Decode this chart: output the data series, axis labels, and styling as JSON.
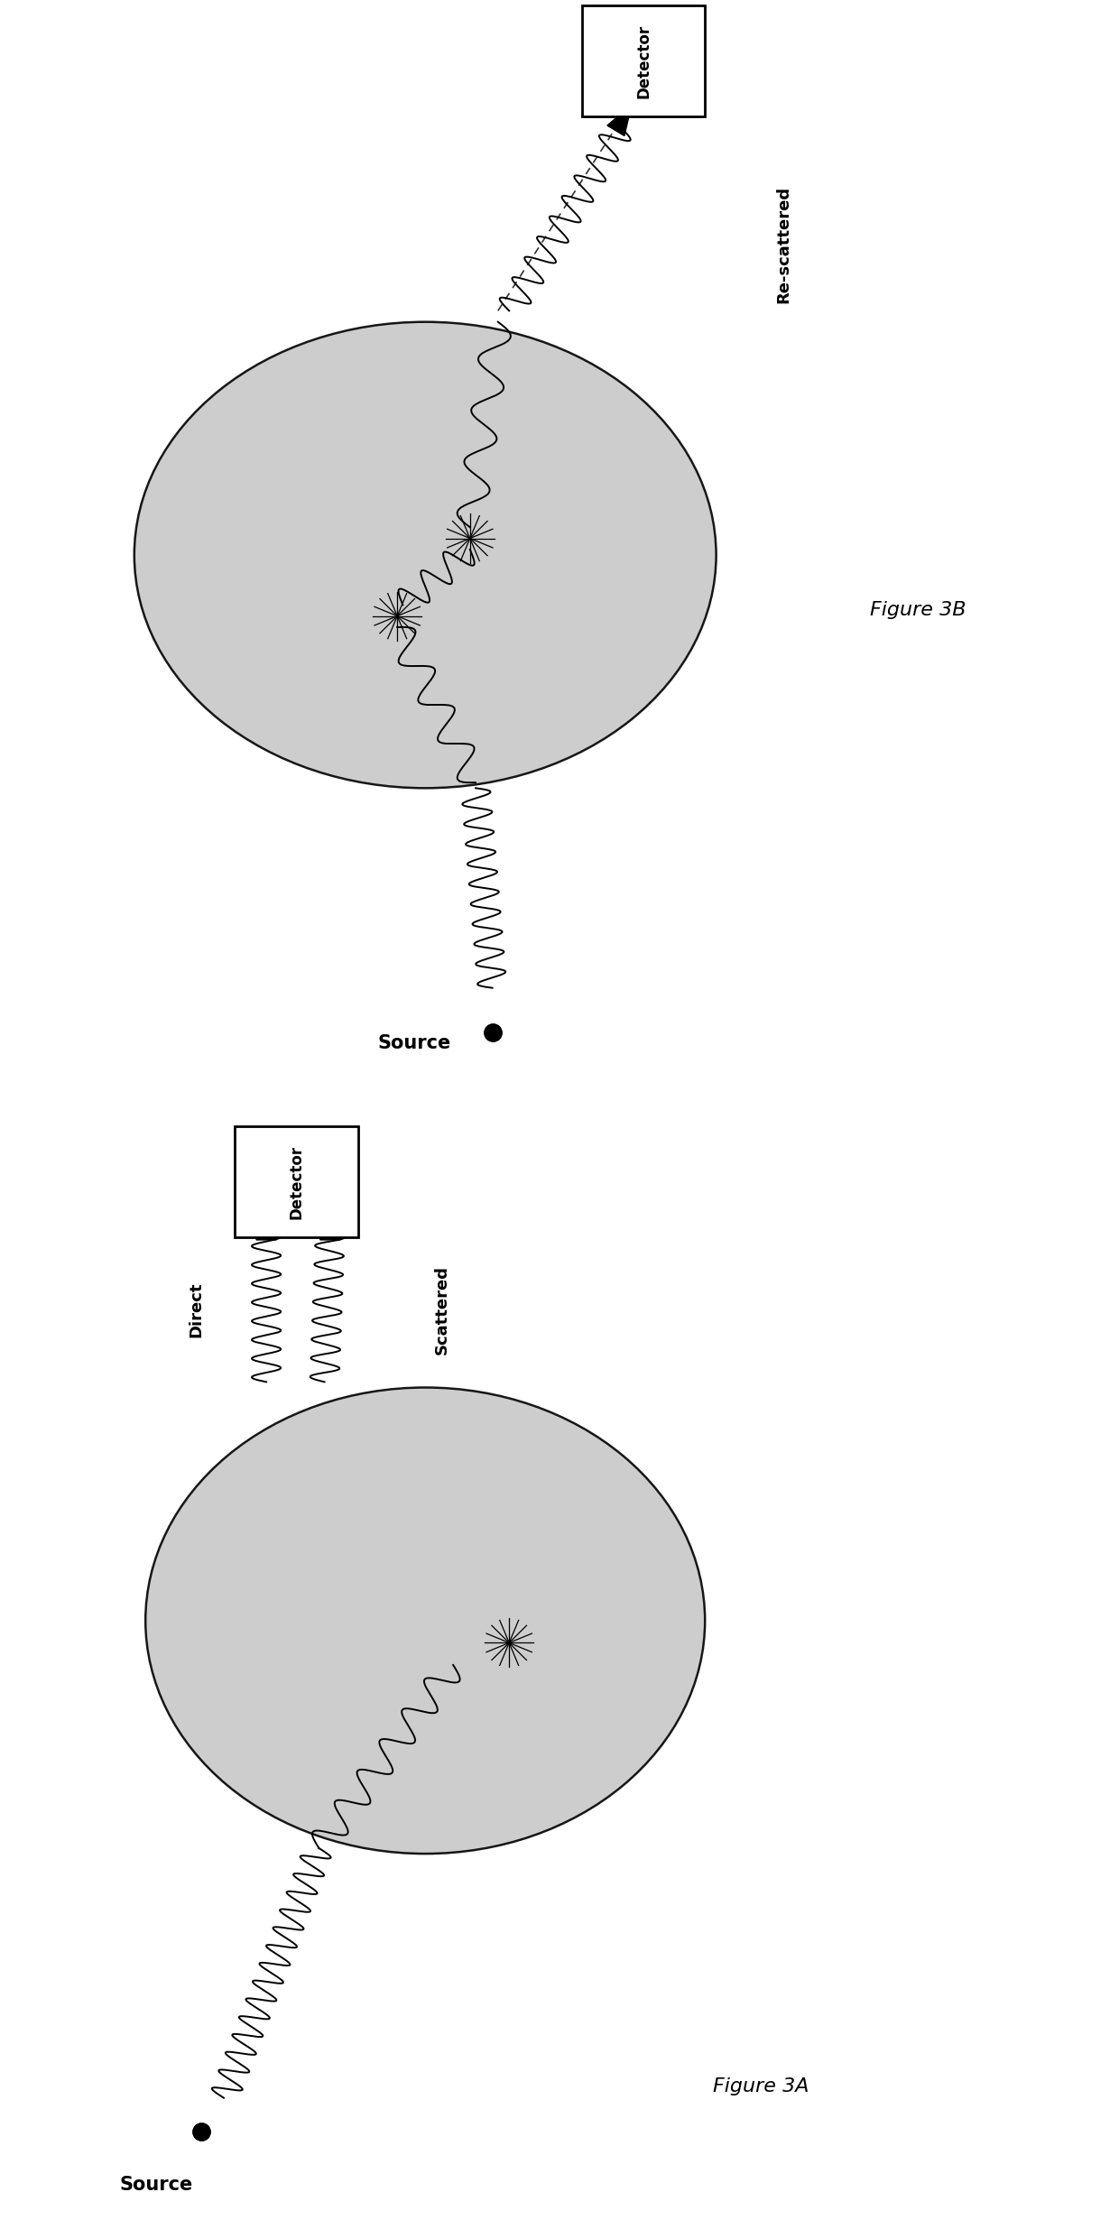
{
  "fig_width": 12.4,
  "fig_height": 24.6,
  "bg_color": "#ffffff",
  "fig3a_label": "Figure 3A",
  "fig3b_label": "Figure 3B",
  "source_label": "Source",
  "detector_label": "Detector",
  "direct_label": "Direct",
  "scattered_label": "Scattered",
  "rescattered_label": "Re-scattered",
  "ellipse_color": "#c8c8c8",
  "ellipse_edge": "#000000",
  "box_face": "#ffffff",
  "box_edge": "#000000"
}
